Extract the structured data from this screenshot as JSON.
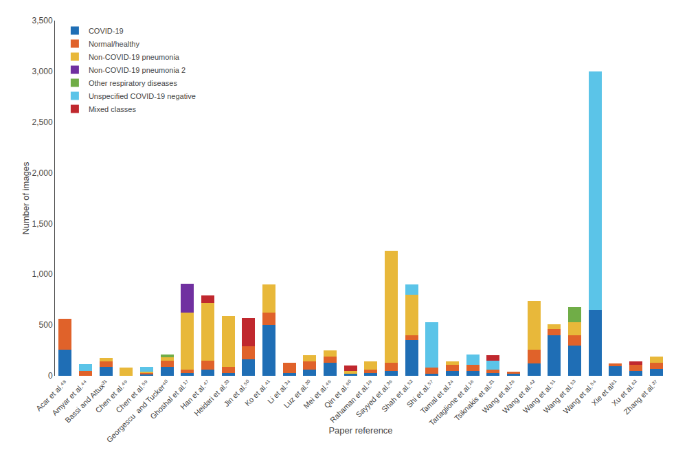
{
  "chart_data": {
    "type": "bar",
    "stacked": true,
    "grid": false,
    "legend": "upper left",
    "xlabel": "Paper reference",
    "ylabel": "Number of images",
    "categories": [
      "Acar et al.⁴⁸",
      "Amyar et al.⁴⁴",
      "Bassi and Attux³¹",
      "Chen et al.⁴⁹",
      "Chen et al.⁵⁹",
      "Georgescu  and Tucker⁴⁰",
      "Ghoshal et al.¹⁷",
      "Han et al.⁴⁷",
      "Heidari et al.³³",
      "Jin et al.⁵⁰",
      "Ko et al.⁴¹",
      "Li et al.³⁴",
      "Luz et al.³⁰",
      "Mei et al.⁴⁶",
      "Qin et al.⁶⁰",
      "Rahaman et al.¹⁹",
      "Sayyed et al.³⁶",
      "Shah et al.⁵²",
      "Shi et al.⁵⁷",
      "Tamal et al.²⁴",
      "Tartaglione et al.¹⁶",
      "Tsiknakis et al.²¹",
      "Wang et al.²⁶",
      "Wang et al.⁴²",
      "Wang et al.⁵¹",
      "Wang et al.⁵³",
      "Wang et al.⁵⁴",
      "Xie et al⁶¹",
      "Xu et al.⁶²",
      "Zhang et al.³⁷"
    ],
    "series": [
      {
        "name": "COVID-19",
        "color": "#1f6eb5",
        "values": [
          260,
          0,
          85,
          0,
          20,
          90,
          30,
          60,
          30,
          160,
          500,
          30,
          60,
          130,
          20,
          30,
          50,
          350,
          20,
          50,
          50,
          30,
          20,
          120,
          400,
          300,
          650,
          95,
          50,
          70
        ]
      },
      {
        "name": "Normal/healthy",
        "color": "#e0622a",
        "values": [
          300,
          50,
          60,
          0,
          10,
          60,
          30,
          90,
          60,
          130,
          120,
          100,
          80,
          60,
          0,
          30,
          80,
          50,
          60,
          60,
          60,
          30,
          20,
          140,
          60,
          100,
          0,
          30,
          60,
          60
        ]
      },
      {
        "name": "Non-COVID-19 pneumonia",
        "color": "#e8b83a",
        "values": [
          0,
          0,
          30,
          80,
          10,
          30,
          560,
          570,
          500,
          0,
          280,
          0,
          60,
          60,
          30,
          80,
          1100,
          400,
          0,
          30,
          0,
          0,
          0,
          480,
          50,
          130,
          0,
          0,
          0,
          60
        ]
      },
      {
        "name": "Non-COVID-19 pneumonia 2",
        "color": "#7030a0",
        "values": [
          0,
          0,
          0,
          0,
          0,
          0,
          290,
          0,
          0,
          0,
          0,
          0,
          0,
          0,
          0,
          0,
          0,
          0,
          0,
          0,
          0,
          0,
          0,
          0,
          0,
          0,
          0,
          0,
          0,
          0
        ]
      },
      {
        "name": "Other respiratory diseases",
        "color": "#70ad47",
        "values": [
          0,
          0,
          0,
          0,
          0,
          30,
          0,
          0,
          0,
          0,
          0,
          0,
          0,
          0,
          0,
          0,
          0,
          0,
          0,
          0,
          0,
          0,
          0,
          0,
          0,
          150,
          0,
          0,
          0,
          0
        ]
      },
      {
        "name": "Unspecified COVID-19 negative",
        "color": "#5bc4e8",
        "values": [
          0,
          65,
          0,
          0,
          50,
          0,
          0,
          0,
          0,
          0,
          0,
          0,
          0,
          0,
          0,
          0,
          0,
          100,
          450,
          0,
          100,
          90,
          0,
          0,
          0,
          0,
          2350,
          0,
          0,
          0
        ]
      },
      {
        "name": "Mixed classes",
        "color": "#c0282e",
        "values": [
          0,
          0,
          0,
          0,
          0,
          0,
          0,
          70,
          0,
          280,
          0,
          0,
          0,
          0,
          50,
          0,
          0,
          0,
          0,
          0,
          0,
          50,
          0,
          0,
          0,
          0,
          0,
          0,
          30,
          0
        ]
      }
    ],
    "ylim": [
      0,
      3500
    ],
    "yticks": [
      0,
      500,
      {
        "value": 1000,
        "label": "1,000"
      },
      {
        "value": 1500,
        "label": "1,500"
      },
      {
        "value": 2000,
        "label": "2,000"
      },
      {
        "value": 2500,
        "label": "2,500"
      },
      {
        "value": 3000,
        "label": "3,000"
      },
      {
        "value": 3500,
        "label": "3,500"
      }
    ]
  }
}
